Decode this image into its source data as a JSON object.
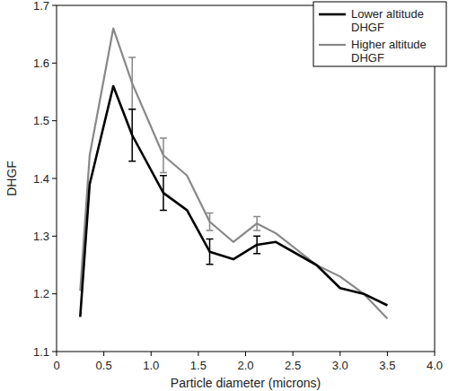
{
  "chart_data": {
    "type": "line",
    "x_label": "Particle diameter (microns)",
    "y_label": "DHGF",
    "x": [
      0.25,
      0.35,
      0.6,
      0.8,
      1.13,
      1.38,
      1.62,
      1.87,
      2.12,
      2.32,
      2.75,
      3.0,
      3.25,
      3.5
    ],
    "series": [
      {
        "name": "Lower altitude DHGF",
        "color": "#000000",
        "values": [
          1.16,
          1.39,
          1.56,
          1.475,
          1.375,
          1.345,
          1.273,
          1.26,
          1.285,
          1.29,
          1.25,
          1.21,
          1.2,
          1.18
        ],
        "errors": [
          null,
          null,
          null,
          0.045,
          0.03,
          null,
          0.022,
          null,
          0.015,
          null,
          null,
          null,
          null,
          null
        ]
      },
      {
        "name": "Higher altitude DHGF",
        "color": "#888888",
        "values": [
          1.205,
          1.44,
          1.66,
          1.565,
          1.44,
          1.405,
          1.325,
          1.29,
          1.322,
          1.305,
          1.25,
          1.23,
          1.2,
          1.157
        ],
        "errors": [
          null,
          null,
          null,
          0.045,
          0.03,
          null,
          0.015,
          null,
          0.012,
          null,
          null,
          null,
          null,
          null
        ]
      }
    ],
    "xlim": [
      0,
      4.0
    ],
    "xticks": [
      0,
      0.5,
      {
        "value": 1,
        "label": "1.0"
      },
      1.5,
      {
        "value": 2,
        "label": "2.0"
      },
      2.5,
      {
        "value": 3,
        "label": "3.0"
      },
      3.5,
      {
        "value": 4,
        "label": "4.0"
      }
    ],
    "ylim": [
      1.1,
      1.7
    ],
    "yticks": [
      1.1,
      1.2,
      1.3,
      1.4,
      1.5,
      1.6,
      1.7
    ],
    "grid": false,
    "legend": "top-right"
  }
}
